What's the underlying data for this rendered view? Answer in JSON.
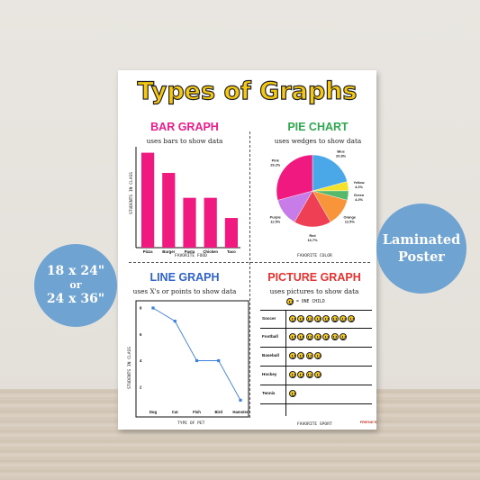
{
  "poster": {
    "title": "Types of Graphs",
    "logo_text": "FRIEND'S"
  },
  "bar_section": {
    "title": "BAR GRAPH",
    "subtitle": "uses bars to show data",
    "ylabel": "STUDENTS IN CLASS",
    "xlabel": "FAVORITE FOOD",
    "color": "#f0197f"
  },
  "pie_section": {
    "title": "PIE CHART",
    "subtitle": "uses wedges to show data",
    "xlabel": "FAVORITE COLOR"
  },
  "line_section": {
    "title": "LINE GRAPH",
    "subtitle": "uses X's or points to show data",
    "ylabel": "STUDENTS IN CLASS",
    "xlabel": "TYPE OF PET"
  },
  "picture_section": {
    "title": "PICTURE GRAPH",
    "subtitle": "uses pictures to show data",
    "key": "= ONE CHILD",
    "xlabel": "FAVORITE SPORT",
    "icon": "smiley-face-icon"
  },
  "badges": {
    "left_line1": "18 x 24\"",
    "left_line2": "or",
    "left_line3": "24 x 36\"",
    "right_line1": "Laminated",
    "right_line2": "Poster",
    "color": "#6ea3d2"
  },
  "chart_data": [
    {
      "type": "bar",
      "categories": [
        "Pizza",
        "Burger",
        "Pasta",
        "Chicken",
        "Taco"
      ],
      "values": [
        8,
        6.3,
        4.2,
        4.2,
        2.5
      ],
      "title": "BAR GRAPH",
      "xlabel": "FAVORITE FOOD",
      "ylabel": "STUDENTS IN CLASS"
    },
    {
      "type": "pie",
      "slices": [
        {
          "label": "Blue",
          "pct": "20.8%",
          "value": 20.8,
          "color": "#4aa8e8"
        },
        {
          "label": "Yellow",
          "pct": "4.2%",
          "value": 4.2,
          "color": "#f4e12b"
        },
        {
          "label": "Green",
          "pct": "4.2%",
          "value": 4.2,
          "color": "#55b86a"
        },
        {
          "label": "Orange",
          "pct": "12.5%",
          "value": 12.5,
          "color": "#f8953a"
        },
        {
          "label": "Red",
          "pct": "16.7%",
          "value": 16.7,
          "color": "#ee3f54"
        },
        {
          "label": "Purple",
          "pct": "12.5%",
          "value": 12.5,
          "color": "#c77ce8"
        },
        {
          "label": "Pink",
          "pct": "29.2%",
          "value": 29.2,
          "color": "#f0197f"
        }
      ],
      "title": "PIE CHART",
      "xlabel": "FAVORITE COLOR"
    },
    {
      "type": "line",
      "categories": [
        "Dog",
        "Cat",
        "Fish",
        "Bird",
        "Hamster"
      ],
      "values": [
        8,
        7,
        4,
        4,
        1
      ],
      "yticks": [
        8,
        6,
        4,
        2
      ],
      "ylim": [
        0,
        8
      ],
      "title": "LINE GRAPH",
      "xlabel": "TYPE OF PET",
      "ylabel": "STUDENTS IN CLASS",
      "color": "#3f7fe0"
    },
    {
      "type": "table",
      "categories": [
        "Soccer",
        "Football",
        "Baseball",
        "Hockey",
        "Tennis"
      ],
      "values": [
        8,
        7,
        4,
        4,
        1
      ],
      "title": "PICTURE GRAPH",
      "xlabel": "FAVORITE SPORT"
    }
  ]
}
